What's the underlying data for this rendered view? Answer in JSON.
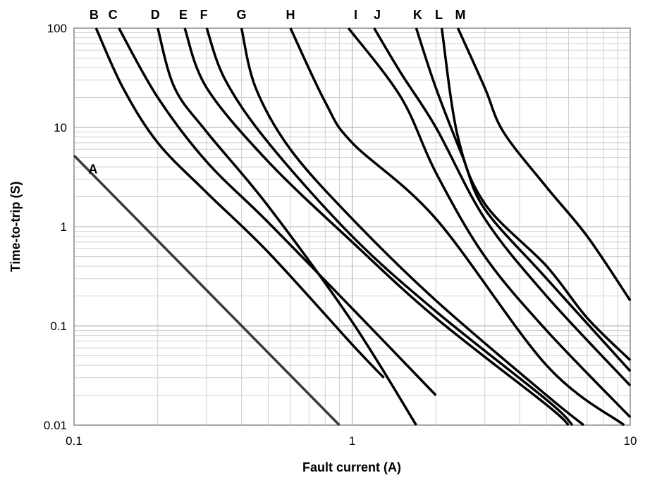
{
  "chart_data": {
    "type": "line",
    "title": "",
    "xlabel": "Fault current (A)",
    "ylabel": "Time-to-trip (S)",
    "x_scale": "log",
    "y_scale": "log",
    "xlim": [
      0.1,
      10
    ],
    "ylim": [
      0.01,
      100
    ],
    "grid": true,
    "legend": "labels at curve tops",
    "x_ticks": [
      {
        "value": 0.1,
        "label": "0.1"
      },
      {
        "value": 1,
        "label": "1"
      },
      {
        "value": 10,
        "label": "10"
      }
    ],
    "y_ticks": [
      {
        "value": 0.01,
        "label": "0.01"
      },
      {
        "value": 0.1,
        "label": "0.1"
      },
      {
        "value": 1,
        "label": "1"
      },
      {
        "value": 10,
        "label": "10"
      },
      {
        "value": 100,
        "label": "100"
      }
    ],
    "series": [
      {
        "name": "A",
        "color": "#3a3a3a",
        "x": [
          0.1,
          0.9
        ],
        "y": [
          5.2,
          0.01
        ],
        "label_at": {
          "x": 0.117,
          "y": 3.8
        }
      },
      {
        "name": "B",
        "color": "#000000",
        "x": [
          0.12,
          0.15,
          0.2,
          0.3,
          0.5,
          1.0,
          1.3
        ],
        "y": [
          100,
          25,
          7,
          2.2,
          0.55,
          0.065,
          0.03
        ],
        "label_at": {
          "x": 0.118,
          "y": 100
        }
      },
      {
        "name": "C",
        "color": "#000000",
        "x": [
          0.145,
          0.2,
          0.3,
          0.5,
          1.0,
          2.0
        ],
        "y": [
          100,
          20,
          4.5,
          1.1,
          0.15,
          0.02
        ],
        "label_at": {
          "x": 0.138,
          "y": 100
        }
      },
      {
        "name": "D",
        "color": "#000000",
        "x": [
          0.2,
          0.23,
          0.3,
          0.5,
          1.0,
          1.7
        ],
        "y": [
          100,
          25,
          9,
          1.6,
          0.11,
          0.01
        ],
        "label_at": {
          "x": 0.196,
          "y": 100
        }
      },
      {
        "name": "E",
        "color": "#000000",
        "x": [
          0.25,
          0.3,
          0.5,
          1.0,
          2.0,
          5.0,
          6.0
        ],
        "y": [
          100,
          25,
          4.5,
          0.7,
          0.12,
          0.016,
          0.01
        ],
        "label_at": {
          "x": 0.247,
          "y": 100
        }
      },
      {
        "name": "F",
        "color": "#000000",
        "x": [
          0.3,
          0.35,
          0.5,
          1.0,
          2.0,
          5.0,
          6.2
        ],
        "y": [
          100,
          30,
          7,
          0.8,
          0.14,
          0.018,
          0.01
        ],
        "label_at": {
          "x": 0.293,
          "y": 100
        }
      },
      {
        "name": "G",
        "color": "#000000",
        "x": [
          0.4,
          0.45,
          0.6,
          1.0,
          2.0,
          5.0,
          6.8
        ],
        "y": [
          100,
          25,
          6,
          1.2,
          0.18,
          0.02,
          0.01
        ],
        "label_at": {
          "x": 0.4,
          "y": 100
        }
      },
      {
        "name": "H",
        "color": "#000000",
        "x": [
          0.6,
          0.8,
          1.0,
          2.0,
          5.0,
          9.5
        ],
        "y": [
          100,
          18,
          7,
          1.2,
          0.04,
          0.01
        ],
        "label_at": {
          "x": 0.6,
          "y": 100
        }
      },
      {
        "name": "I",
        "color": "#000000",
        "x": [
          0.97,
          1.5,
          2.0,
          3.0,
          5.0,
          10.0
        ],
        "y": [
          100,
          20,
          3.5,
          0.5,
          0.09,
          0.012
        ],
        "label_at": {
          "x": 1.03,
          "y": 100
        }
      },
      {
        "name": "J",
        "color": "#000000",
        "x": [
          1.2,
          1.5,
          2.0,
          3.0,
          5.0,
          10.0
        ],
        "y": [
          100,
          35,
          10,
          1.2,
          0.2,
          0.025
        ],
        "label_at": {
          "x": 1.23,
          "y": 100
        }
      },
      {
        "name": "K",
        "color": "#000000",
        "x": [
          1.7,
          2.0,
          2.5,
          3.0,
          5.0,
          10.0
        ],
        "y": [
          100,
          25,
          5,
          1.5,
          0.3,
          0.035
        ],
        "label_at": {
          "x": 1.72,
          "y": 100
        }
      },
      {
        "name": "L",
        "color": "#000000",
        "x": [
          2.1,
          2.4,
          3.0,
          5.0,
          7.0,
          10.0
        ],
        "y": [
          100,
          8,
          1.7,
          0.4,
          0.12,
          0.045
        ],
        "label_at": {
          "x": 2.05,
          "y": 100
        }
      },
      {
        "name": "M",
        "color": "#000000",
        "x": [
          2.4,
          3.0,
          3.5,
          5.0,
          7.0,
          10.0
        ],
        "y": [
          100,
          25,
          9,
          2.5,
          0.8,
          0.18
        ],
        "label_at": {
          "x": 2.45,
          "y": 100
        }
      }
    ]
  }
}
